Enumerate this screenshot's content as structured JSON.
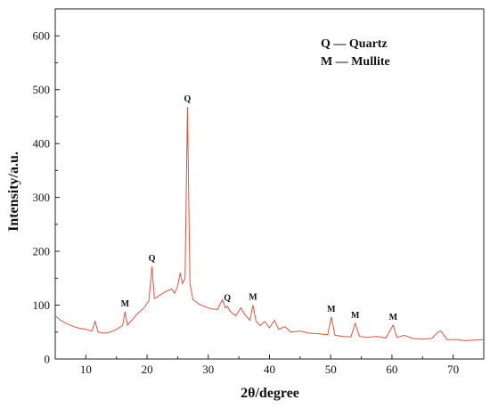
{
  "chart_data": {
    "type": "line",
    "xlabel": "2θ/degree",
    "ylabel": "Intensity/a.u.",
    "xlim": [
      5,
      75
    ],
    "ylim": [
      0,
      650
    ],
    "x_ticks": [
      10,
      20,
      30,
      40,
      50,
      60,
      70
    ],
    "y_ticks": [
      0,
      100,
      200,
      300,
      400,
      500,
      600
    ],
    "grid": false,
    "line_color": "#e0533a",
    "legend": {
      "placement": "top-right",
      "entries": [
        "Q — Quartz",
        "M — Mullite"
      ]
    },
    "peak_annotations": [
      {
        "label": "M",
        "x": 16.4,
        "y": 88
      },
      {
        "label": "Q",
        "x": 20.8,
        "y": 172
      },
      {
        "label": "Q",
        "x": 26.6,
        "y": 468
      },
      {
        "label": "Q",
        "x": 33.1,
        "y": 98
      },
      {
        "label": "M",
        "x": 37.3,
        "y": 100
      },
      {
        "label": "M",
        "x": 50.1,
        "y": 78
      },
      {
        "label": "M",
        "x": 54.0,
        "y": 66
      },
      {
        "label": "M",
        "x": 60.2,
        "y": 63
      }
    ],
    "series": [
      {
        "x": [
          5,
          6,
          7,
          8,
          9,
          10,
          11,
          11.5,
          12,
          13,
          14,
          15,
          16,
          16.4,
          16.8,
          17.5,
          18.5,
          19.5,
          20.3,
          20.8,
          21.2,
          22,
          23,
          24,
          24.5,
          25,
          25.4,
          25.8,
          26.2,
          26.6,
          27,
          27.5,
          28.5,
          29.5,
          30.5,
          31.5,
          32.3,
          32.8,
          33.1,
          33.6,
          34.5,
          35.3,
          36,
          36.8,
          37.3,
          37.8,
          38.5,
          39.2,
          40,
          40.8,
          41.5,
          42.5,
          43.5,
          45,
          46.5,
          48,
          49.5,
          50.1,
          50.7,
          52,
          53.3,
          54,
          54.7,
          56,
          57.5,
          59,
          60.2,
          60.8,
          62,
          63.5,
          65,
          66.5,
          67.5,
          68,
          69,
          70.5,
          72,
          73.5,
          75
        ],
        "values": [
          80,
          71,
          65,
          60,
          57,
          55,
          52,
          70,
          50,
          48,
          50,
          55,
          62,
          88,
          63,
          72,
          85,
          95,
          108,
          172,
          112,
          118,
          125,
          130,
          122,
          135,
          160,
          140,
          150,
          468,
          140,
          110,
          102,
          97,
          93,
          92,
          110,
          95,
          98,
          88,
          80,
          95,
          82,
          72,
          100,
          70,
          62,
          70,
          58,
          72,
          55,
          60,
          50,
          52,
          48,
          47,
          45,
          78,
          44,
          42,
          41,
          66,
          42,
          40,
          42,
          39,
          63,
          40,
          44,
          38,
          37,
          38,
          50,
          52,
          36,
          36,
          34,
          35,
          36
        ]
      }
    ]
  }
}
